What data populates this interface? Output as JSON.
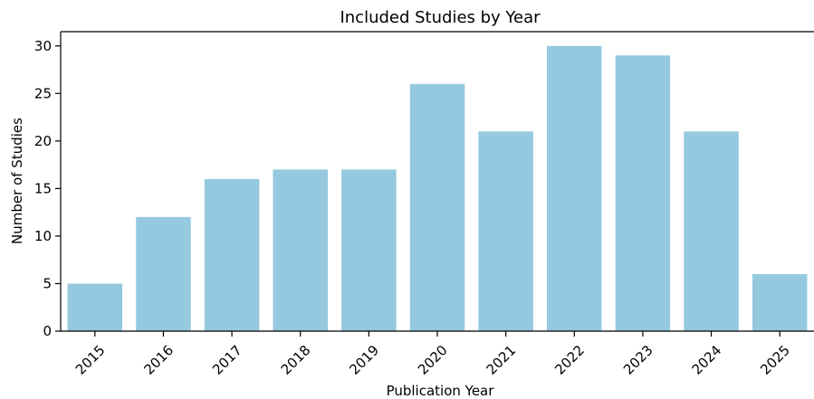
{
  "chart_data": {
    "type": "bar",
    "title": "Included Studies by Year",
    "xlabel": "Publication Year",
    "ylabel": "Number of Studies",
    "categories": [
      "2015",
      "2016",
      "2017",
      "2018",
      "2019",
      "2020",
      "2021",
      "2022",
      "2023",
      "2024",
      "2025"
    ],
    "values": [
      5,
      12,
      16,
      17,
      17,
      26,
      21,
      30,
      29,
      21,
      6
    ],
    "ylim": [
      0,
      31.5
    ],
    "yticks": [
      0,
      5,
      10,
      15,
      20,
      25,
      30
    ],
    "grid": false,
    "bar_color": "#95c9df",
    "x_tick_rotation": "45 degrees"
  }
}
